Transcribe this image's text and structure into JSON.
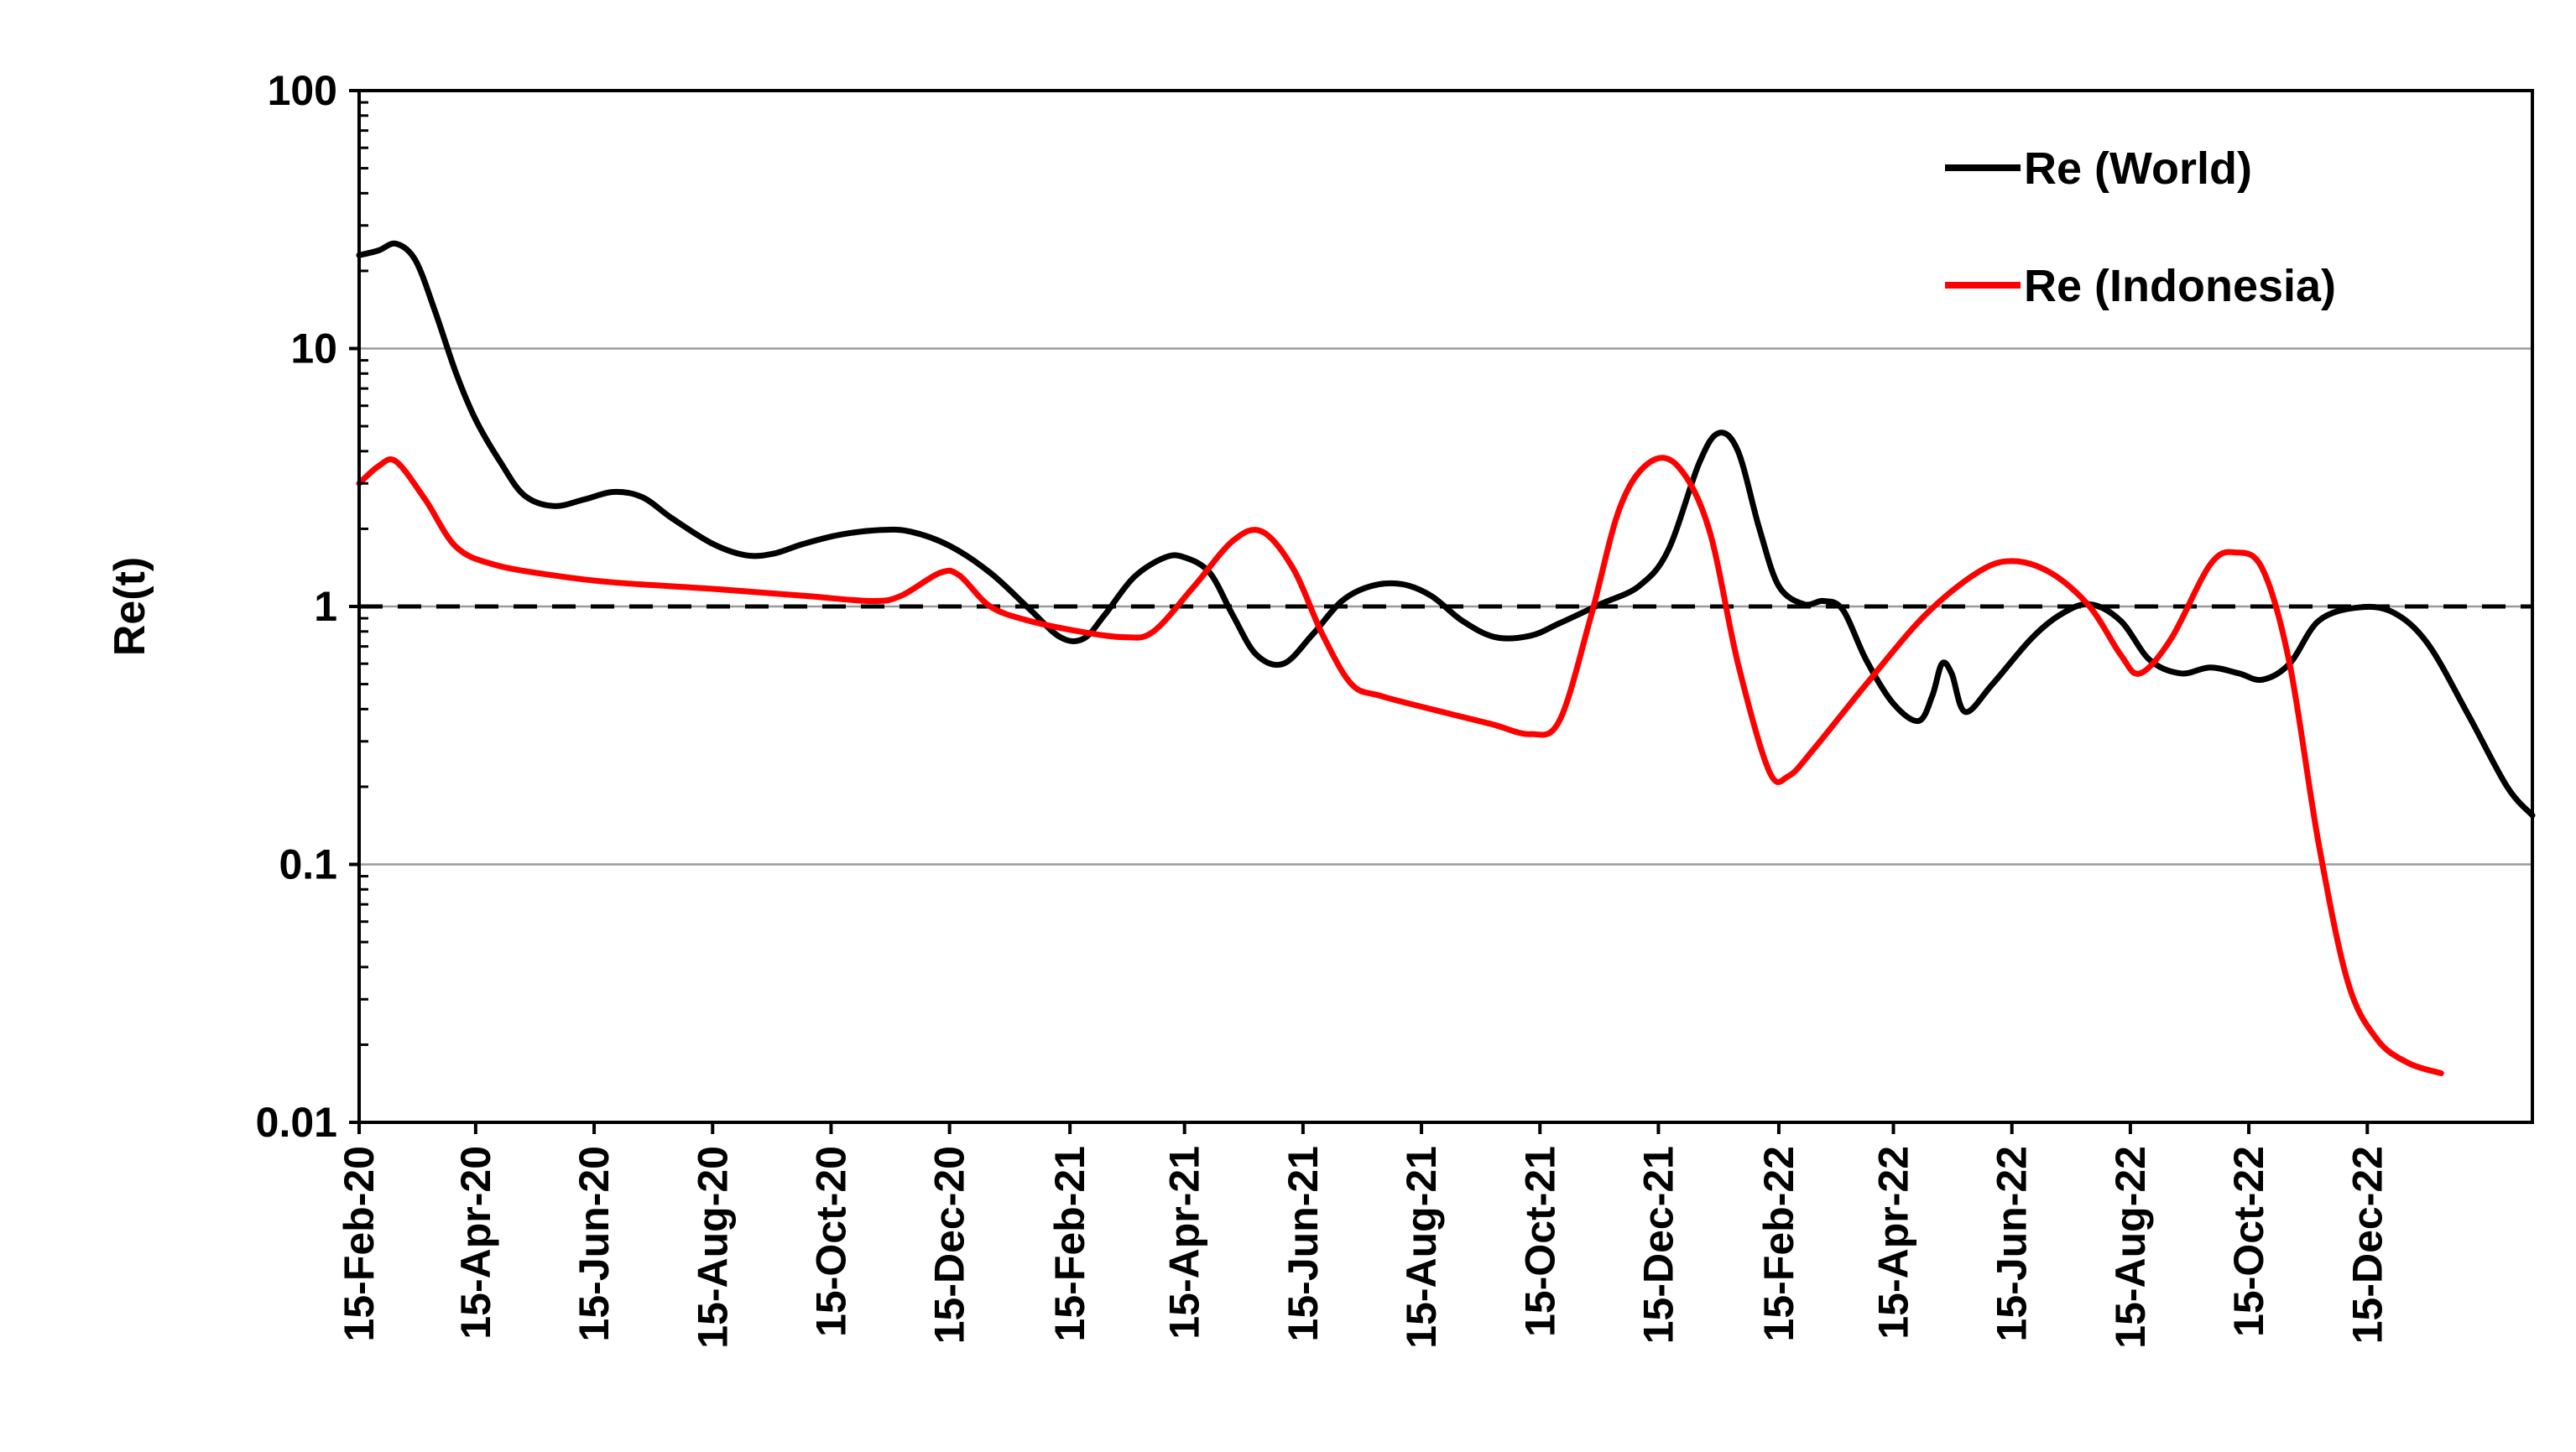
{
  "chart_data": {
    "type": "line",
    "title": "",
    "xlabel": "",
    "ylabel": "Re(t)",
    "yscale": "log",
    "ylim": [
      0.01,
      100
    ],
    "y_ticks": [
      "0.01",
      "0.1",
      "1",
      "10",
      "100"
    ],
    "x_range": [
      "2020-02-15",
      "2023-03-10"
    ],
    "x_ticks": [
      {
        "date": "2020-02-15",
        "label": "15-Feb-20"
      },
      {
        "date": "2020-04-15",
        "label": "15-Apr-20"
      },
      {
        "date": "2020-06-15",
        "label": "15-Jun-20"
      },
      {
        "date": "2020-08-15",
        "label": "15-Aug-20"
      },
      {
        "date": "2020-10-15",
        "label": "15-Oct-20"
      },
      {
        "date": "2020-12-15",
        "label": "15-Dec-20"
      },
      {
        "date": "2021-02-15",
        "label": "15-Feb-21"
      },
      {
        "date": "2021-04-15",
        "label": "15-Apr-21"
      },
      {
        "date": "2021-06-15",
        "label": "15-Jun-21"
      },
      {
        "date": "2021-08-15",
        "label": "15-Aug-21"
      },
      {
        "date": "2021-10-15",
        "label": "15-Oct-21"
      },
      {
        "date": "2021-12-15",
        "label": "15-Dec-21"
      },
      {
        "date": "2022-02-15",
        "label": "15-Feb-22"
      },
      {
        "date": "2022-04-15",
        "label": "15-Apr-22"
      },
      {
        "date": "2022-06-15",
        "label": "15-Jun-22"
      },
      {
        "date": "2022-08-15",
        "label": "15-Aug-22"
      },
      {
        "date": "2022-10-15",
        "label": "15-Oct-22"
      },
      {
        "date": "2022-12-15",
        "label": "15-Dec-22"
      }
    ],
    "grid": "horizontal major",
    "legend_position": "top-right",
    "reference_line": {
      "y": 1,
      "style": "dashed",
      "color": "#000000"
    },
    "series": [
      {
        "name": "Re (World)",
        "color": "#000000",
        "points": [
          [
            "2020-02-15",
            23
          ],
          [
            "2020-02-25",
            24
          ],
          [
            "2020-03-05",
            25.5
          ],
          [
            "2020-03-15",
            22
          ],
          [
            "2020-03-25",
            14
          ],
          [
            "2020-04-05",
            8
          ],
          [
            "2020-04-15",
            5.3
          ],
          [
            "2020-04-28",
            3.6
          ],
          [
            "2020-05-10",
            2.7
          ],
          [
            "2020-05-25",
            2.45
          ],
          [
            "2020-06-10",
            2.6
          ],
          [
            "2020-06-25",
            2.78
          ],
          [
            "2020-07-10",
            2.65
          ],
          [
            "2020-07-25",
            2.2
          ],
          [
            "2020-08-15",
            1.75
          ],
          [
            "2020-09-01",
            1.58
          ],
          [
            "2020-09-15",
            1.6
          ],
          [
            "2020-10-01",
            1.75
          ],
          [
            "2020-10-20",
            1.9
          ],
          [
            "2020-11-10",
            1.98
          ],
          [
            "2020-11-25",
            1.95
          ],
          [
            "2020-12-15",
            1.72
          ],
          [
            "2021-01-05",
            1.35
          ],
          [
            "2021-01-25",
            0.98
          ],
          [
            "2021-02-10",
            0.76
          ],
          [
            "2021-02-22",
            0.75
          ],
          [
            "2021-03-05",
            0.93
          ],
          [
            "2021-03-20",
            1.3
          ],
          [
            "2021-04-05",
            1.55
          ],
          [
            "2021-04-15",
            1.55
          ],
          [
            "2021-04-28",
            1.35
          ],
          [
            "2021-05-10",
            0.92
          ],
          [
            "2021-05-22",
            0.65
          ],
          [
            "2021-06-05",
            0.6
          ],
          [
            "2021-06-20",
            0.78
          ],
          [
            "2021-07-05",
            1.05
          ],
          [
            "2021-07-20",
            1.2
          ],
          [
            "2021-08-05",
            1.22
          ],
          [
            "2021-08-20",
            1.1
          ],
          [
            "2021-09-05",
            0.88
          ],
          [
            "2021-09-22",
            0.76
          ],
          [
            "2021-10-10",
            0.77
          ],
          [
            "2021-10-25",
            0.86
          ],
          [
            "2021-11-15",
            1.02
          ],
          [
            "2021-12-05",
            1.2
          ],
          [
            "2021-12-20",
            1.65
          ],
          [
            "2022-01-05",
            3.6
          ],
          [
            "2022-01-15",
            4.7
          ],
          [
            "2022-01-25",
            4.0
          ],
          [
            "2022-02-05",
            2.0
          ],
          [
            "2022-02-15",
            1.2
          ],
          [
            "2022-02-28",
            1.02
          ],
          [
            "2022-03-10",
            1.05
          ],
          [
            "2022-03-20",
            0.97
          ],
          [
            "2022-04-01",
            0.62
          ],
          [
            "2022-04-15",
            0.42
          ],
          [
            "2022-04-28",
            0.36
          ],
          [
            "2022-05-05",
            0.45
          ],
          [
            "2022-05-10",
            0.6
          ],
          [
            "2022-05-15",
            0.55
          ],
          [
            "2022-05-22",
            0.39
          ],
          [
            "2022-06-05",
            0.5
          ],
          [
            "2022-06-25",
            0.75
          ],
          [
            "2022-07-10",
            0.93
          ],
          [
            "2022-07-25",
            1.02
          ],
          [
            "2022-08-10",
            0.88
          ],
          [
            "2022-08-25",
            0.62
          ],
          [
            "2022-09-10",
            0.55
          ],
          [
            "2022-09-25",
            0.58
          ],
          [
            "2022-10-10",
            0.55
          ],
          [
            "2022-10-22",
            0.52
          ],
          [
            "2022-11-05",
            0.6
          ],
          [
            "2022-11-20",
            0.88
          ],
          [
            "2022-12-10",
            0.99
          ],
          [
            "2022-12-28",
            0.95
          ],
          [
            "2023-01-15",
            0.72
          ],
          [
            "2023-02-05",
            0.38
          ],
          [
            "2023-02-25",
            0.2
          ],
          [
            "2023-03-10",
            0.155
          ]
        ]
      },
      {
        "name": "Re (Indonesia)",
        "color": "#ff0000",
        "points": [
          [
            "2020-02-15",
            3.0
          ],
          [
            "2020-02-25",
            3.5
          ],
          [
            "2020-03-05",
            3.65
          ],
          [
            "2020-03-20",
            2.6
          ],
          [
            "2020-04-05",
            1.7
          ],
          [
            "2020-04-25",
            1.45
          ],
          [
            "2020-05-25",
            1.32
          ],
          [
            "2020-06-25",
            1.24
          ],
          [
            "2020-08-15",
            1.17
          ],
          [
            "2020-10-01",
            1.1
          ],
          [
            "2020-11-05",
            1.05
          ],
          [
            "2020-11-20",
            1.1
          ],
          [
            "2020-12-10",
            1.35
          ],
          [
            "2020-12-20",
            1.32
          ],
          [
            "2021-01-05",
            1.0
          ],
          [
            "2021-01-25",
            0.88
          ],
          [
            "2021-02-20",
            0.8
          ],
          [
            "2021-03-15",
            0.76
          ],
          [
            "2021-03-30",
            0.8
          ],
          [
            "2021-04-20",
            1.2
          ],
          [
            "2021-05-10",
            1.8
          ],
          [
            "2021-05-25",
            1.95
          ],
          [
            "2021-06-10",
            1.4
          ],
          [
            "2021-06-25",
            0.78
          ],
          [
            "2021-07-10",
            0.5
          ],
          [
            "2021-07-25",
            0.45
          ],
          [
            "2021-08-20",
            0.4
          ],
          [
            "2021-09-20",
            0.35
          ],
          [
            "2021-10-10",
            0.32
          ],
          [
            "2021-10-25",
            0.36
          ],
          [
            "2021-11-10",
            0.9
          ],
          [
            "2021-11-25",
            2.4
          ],
          [
            "2021-12-10",
            3.6
          ],
          [
            "2021-12-25",
            3.5
          ],
          [
            "2022-01-10",
            2.0
          ],
          [
            "2022-01-25",
            0.6
          ],
          [
            "2022-02-10",
            0.23
          ],
          [
            "2022-02-20",
            0.22
          ],
          [
            "2022-03-05",
            0.28
          ],
          [
            "2022-04-01",
            0.5
          ],
          [
            "2022-05-01",
            0.92
          ],
          [
            "2022-05-28",
            1.35
          ],
          [
            "2022-06-15",
            1.5
          ],
          [
            "2022-07-05",
            1.35
          ],
          [
            "2022-07-25",
            1.0
          ],
          [
            "2022-08-10",
            0.65
          ],
          [
            "2022-08-20",
            0.55
          ],
          [
            "2022-09-05",
            0.75
          ],
          [
            "2022-09-25",
            1.45
          ],
          [
            "2022-10-08",
            1.62
          ],
          [
            "2022-10-22",
            1.4
          ],
          [
            "2022-11-05",
            0.6
          ],
          [
            "2022-11-20",
            0.12
          ],
          [
            "2022-12-05",
            0.035
          ],
          [
            "2022-12-20",
            0.021
          ],
          [
            "2023-01-05",
            0.017
          ],
          [
            "2023-01-22",
            0.0155
          ]
        ]
      }
    ]
  }
}
